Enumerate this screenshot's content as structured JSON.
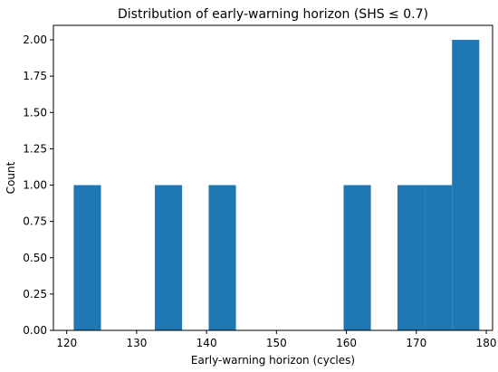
{
  "chart_data": {
    "type": "bar",
    "title": "Distribution of early-warning horizon (SHS ≤ 0.7)",
    "xlabel": "Early-warning horizon (cycles)",
    "ylabel": "Count",
    "xlim": [
      118.1,
      180.9
    ],
    "ylim": [
      0,
      2.1
    ],
    "grid": false,
    "bar_color": "#1f77b4",
    "bins": [
      {
        "x0": 121.0,
        "x1": 124.9,
        "count": 1
      },
      {
        "x0": 124.9,
        "x1": 128.7,
        "count": 0
      },
      {
        "x0": 128.7,
        "x1": 132.6,
        "count": 0
      },
      {
        "x0": 132.6,
        "x1": 136.5,
        "count": 1
      },
      {
        "x0": 136.5,
        "x1": 140.3,
        "count": 0
      },
      {
        "x0": 140.3,
        "x1": 144.2,
        "count": 1
      },
      {
        "x0": 144.2,
        "x1": 148.1,
        "count": 0
      },
      {
        "x0": 148.1,
        "x1": 151.9,
        "count": 0
      },
      {
        "x0": 151.9,
        "x1": 155.8,
        "count": 0
      },
      {
        "x0": 155.8,
        "x1": 159.6,
        "count": 0
      },
      {
        "x0": 159.6,
        "x1": 163.5,
        "count": 1
      },
      {
        "x0": 163.5,
        "x1": 167.3,
        "count": 0
      },
      {
        "x0": 167.3,
        "x1": 171.2,
        "count": 1
      },
      {
        "x0": 171.2,
        "x1": 175.1,
        "count": 1
      },
      {
        "x0": 175.1,
        "x1": 179.0,
        "count": 2
      }
    ],
    "x_ticks": [
      120,
      130,
      140,
      150,
      160,
      170,
      180
    ],
    "x_tick_labels": [
      "120",
      "130",
      "140",
      "150",
      "160",
      "170",
      "180"
    ],
    "y_ticks": [
      0,
      0.25,
      0.5,
      0.75,
      1.0,
      1.25,
      1.5,
      1.75,
      2.0
    ],
    "y_tick_labels": [
      "0.00",
      "0.25",
      "0.50",
      "0.75",
      "1.00",
      "1.25",
      "1.50",
      "1.75",
      "2.00"
    ]
  }
}
